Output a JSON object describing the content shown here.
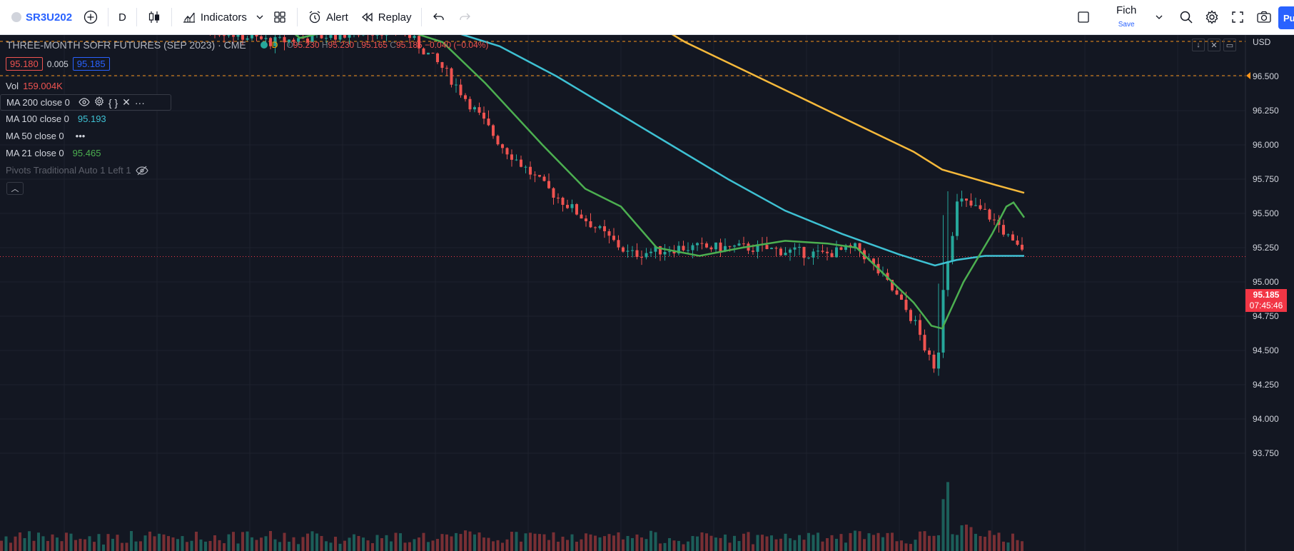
{
  "toolbar": {
    "symbol": "SR3U202",
    "interval": "D",
    "indicators_label": "Indicators",
    "alert_label": "Alert",
    "replay_label": "Replay",
    "layout_name": "Fich",
    "layout_sub": "Save",
    "publish_label": "Pu"
  },
  "legend": {
    "title": "THREE-MONTH SOFR FUTURES (SEP 2023) · CME",
    "interval_badge": "D",
    "ohlc": {
      "o_label": "O",
      "o": "95.230",
      "h_label": "H",
      "h": "95.230",
      "l_label": "L",
      "l": "95.165",
      "c_label": "C",
      "c": "95.185",
      "change": "−0.040 (−0.04%)"
    },
    "bid": "95.180",
    "spread": "0.005",
    "ask": "95.185",
    "vol_label": "Vol",
    "vol_value": "159.004K",
    "indicators": [
      {
        "name": "MA 200 close 0",
        "value": ""
      },
      {
        "name": "MA 100 close 0",
        "value": "95.193"
      },
      {
        "name": "MA 50 close 0",
        "value": "•••"
      },
      {
        "name": "MA 21 close 0",
        "value": "95.465"
      },
      {
        "name": "Pivots Traditional Auto 1 Left 1",
        "value": ""
      }
    ]
  },
  "price_axis": {
    "currency": "USD",
    "labels": [
      "96.500",
      "96.250",
      "96.000",
      "95.750",
      "95.500",
      "95.250",
      "95.000",
      "94.750",
      "94.500",
      "94.250",
      "94.000",
      "93.750"
    ],
    "last_price": "95.185",
    "countdown": "07:45:46"
  },
  "colors": {
    "up": "#26a69a",
    "down": "#ef5350",
    "ma200": "#f6b93b",
    "ma100": "#3ec1d3",
    "ma21": "#4caf50"
  }
}
